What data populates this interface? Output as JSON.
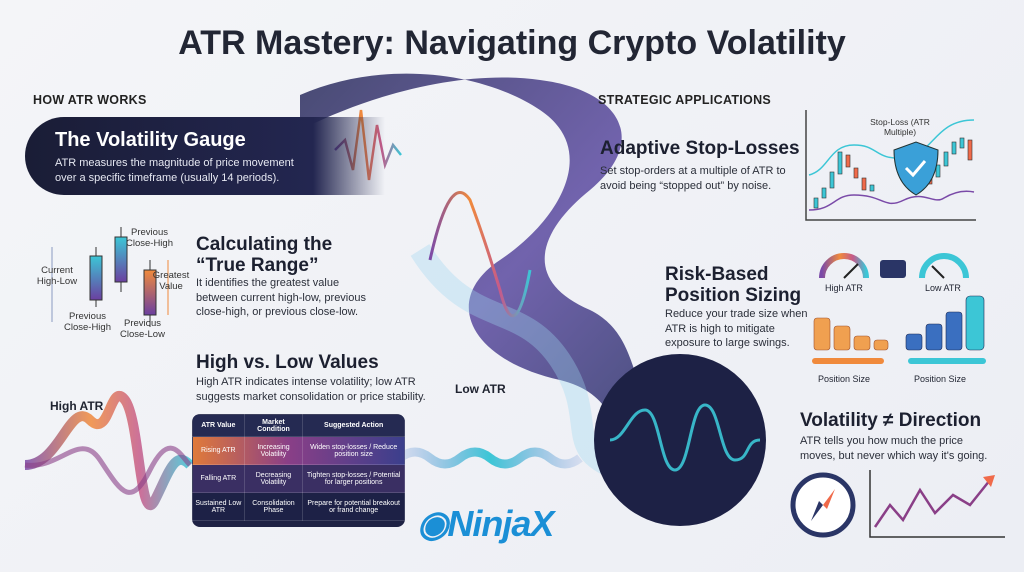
{
  "title": "ATR Mastery: Navigating Crypto Volatility",
  "left": {
    "section": "HOW ATR WORKS",
    "gauge": {
      "title": "The Volatility Gauge",
      "desc": "ATR measures the magnitude of price movement over a specific timeframe (usually 14 periods)."
    },
    "true_range": {
      "title_line1": "Calculating the",
      "title_line2": "“True Range”",
      "desc": "It identifies the greatest value between current high-low, previous close-high, or previous close-low.",
      "labels": {
        "current": "Current High-Low",
        "prev_close_high_top": "Previous Close-High",
        "greatest": "Greatest Value",
        "prev_close_high_bottom": "Previous Close-High",
        "prev_close_low": "Previous Close-Low"
      }
    },
    "high_low": {
      "title": "High vs. Low Values",
      "desc": "High ATR indicates intense volatility; low ATR suggests market consolidation or price stability.",
      "high_label": "High ATR",
      "low_label": "Low ATR"
    },
    "table": {
      "headers": [
        "ATR Value",
        "Market Condition",
        "Suggested Action"
      ],
      "rows": [
        [
          "Rising ATR",
          "Increasing Volatility",
          "Widen stop-losses / Reduce position size"
        ],
        [
          "Falling ATR",
          "Decreasing Volatility",
          "Tighten stop-losses / Potential for larger positions"
        ],
        [
          "Sustained Low ATR",
          "Consolidation Phase",
          "Prepare for potential breakout or frand change"
        ]
      ]
    }
  },
  "right": {
    "section": "STRATEGIC APPLICATIONS",
    "stop": {
      "title": "Adaptive Stop-Losses",
      "desc": "Set stop-orders at a multiple of ATR to avoid being “stopped out” by noise.",
      "chart_label": "Stop-Loss (ATR Multiple)"
    },
    "sizing": {
      "title_line1": "Risk-Based",
      "title_line2": "Position Sizing",
      "desc": "Reduce your trade size when ATR is high to mitigate exposure to large swings.",
      "high_atr": "High ATR",
      "low_atr": "Low ATR",
      "pos_size_1": "Position Size",
      "pos_size_2": "Position Size"
    },
    "direction": {
      "title": "Volatility ≠ Direction",
      "desc": "ATR tells you how much the price moves, but never which way it's going."
    }
  },
  "logo": "NinjaX",
  "colors": {
    "navy": "#1b1f3a",
    "orange": "#f08a3c",
    "purple": "#6b3fa0",
    "teal": "#3cc6d6",
    "blue": "#1b8fd6"
  }
}
